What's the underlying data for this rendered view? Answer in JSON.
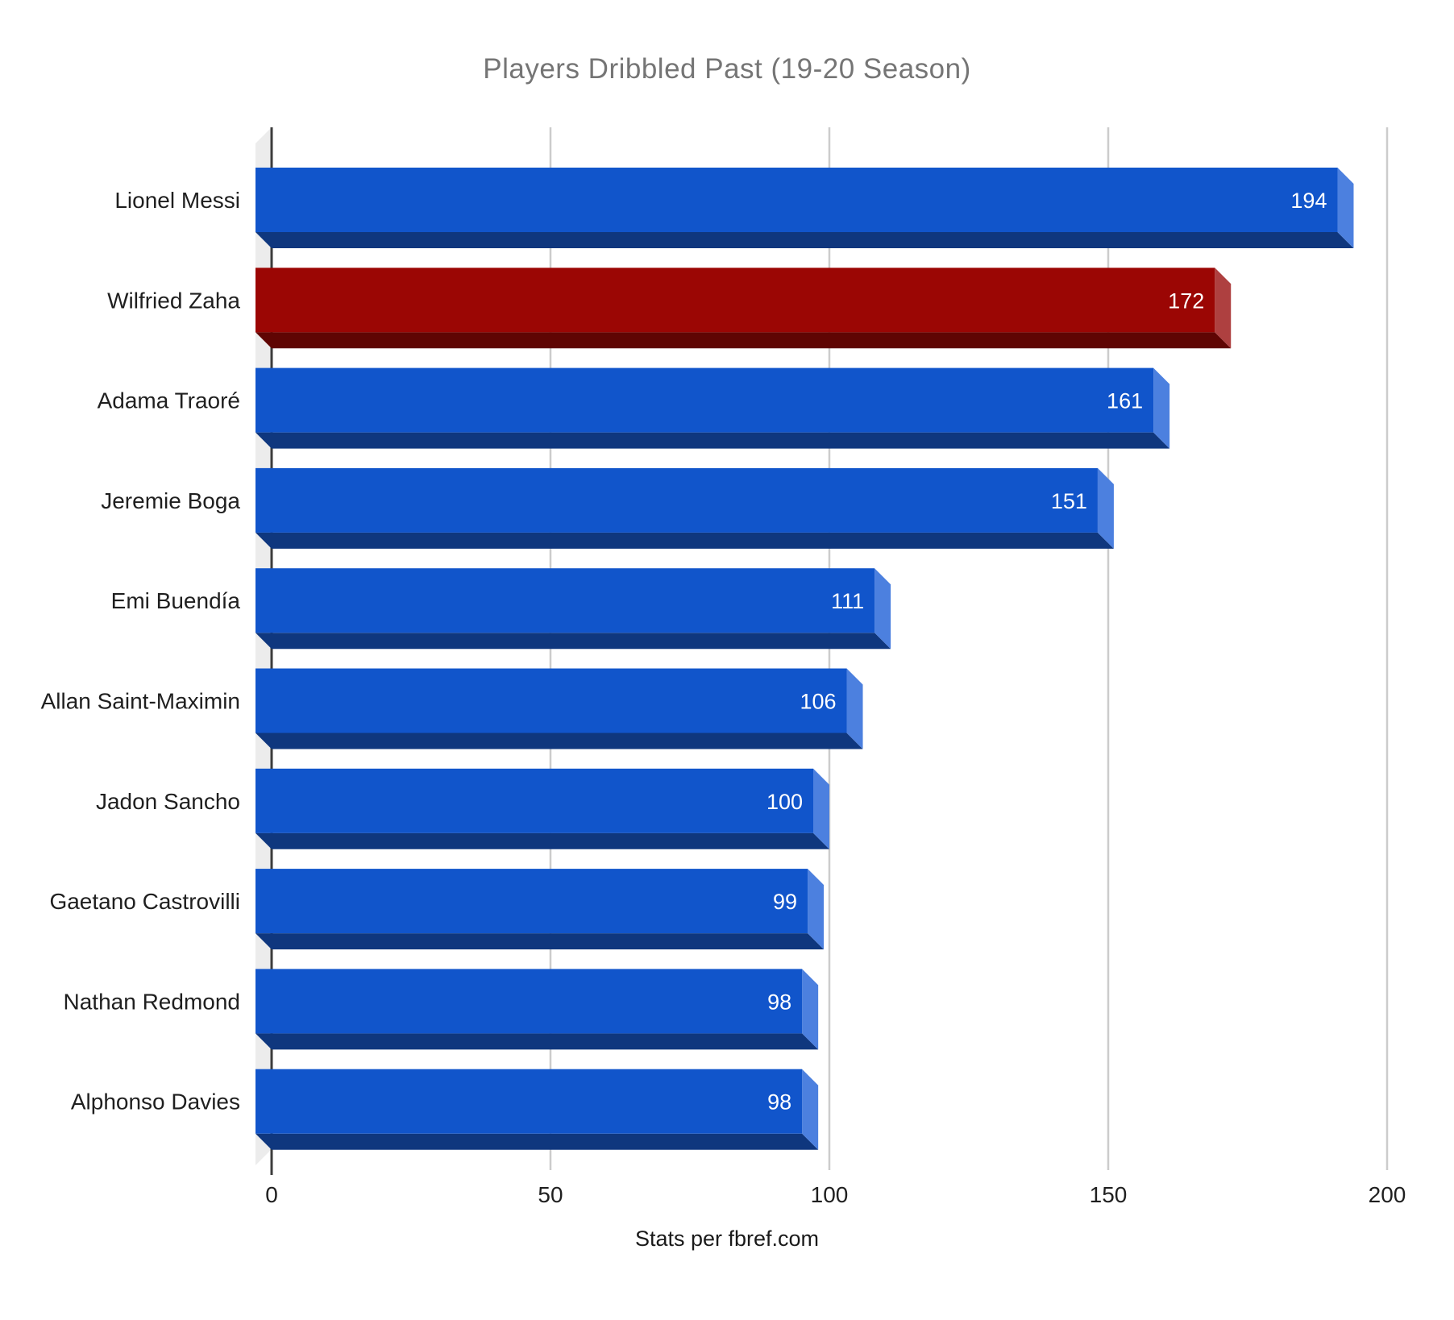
{
  "chart_data": {
    "type": "bar",
    "orientation": "horizontal",
    "effect": "3d",
    "title": "Players Dribbled Past (19-20 Season)",
    "source_note": "Stats per fbref.com",
    "categories": [
      "Lionel Messi",
      "Wilfried Zaha",
      "Adama Traoré",
      "Jeremie Boga",
      "Emi Buendía",
      "Allan Saint-Maximin",
      "Jadon Sancho",
      "Gaetano Castrovilli",
      "Nathan Redmond",
      "Alphonso Davies"
    ],
    "values": [
      194,
      172,
      161,
      151,
      111,
      106,
      100,
      99,
      98,
      98
    ],
    "highlight_index": 1,
    "xlim": [
      0,
      200
    ],
    "x_ticks": [
      0,
      50,
      100,
      150,
      200
    ],
    "grid": true,
    "value_labels": "inside-end",
    "legend": "none",
    "colors": {
      "bar_front": "#1155CB",
      "bar_side": "#4C80DF",
      "bar_bottom": "#0F377E",
      "highlight_front": "#9B0604",
      "highlight_side": "#AE4040",
      "highlight_bottom": "#5F0503",
      "value_label": "#FFFFFF",
      "title_text": "#757575",
      "axis_label": "#1F1F1F",
      "gridline": "#CCCCCC",
      "axis_line": "#3C3C3C",
      "wall": "#ECECEC"
    }
  }
}
